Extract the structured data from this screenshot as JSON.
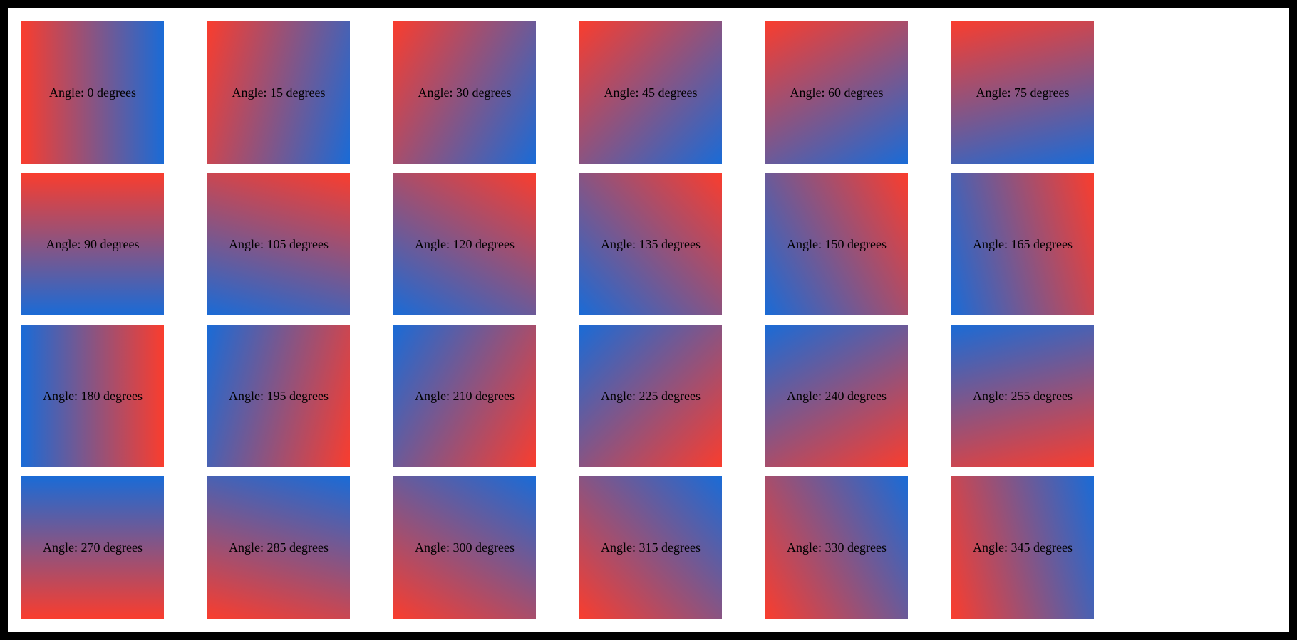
{
  "frame": {
    "border_color": "#000000",
    "page_background": "#ffffff"
  },
  "gradient": {
    "start_color": "#f93d2e",
    "end_color": "#1a6bd6",
    "css_angle_offset_deg": 90,
    "description": "linear gradient from red to blue; label angle 0 = left-to-right"
  },
  "tile_style": {
    "label_template": "Angle: {angle} degrees",
    "text_color": "#000000"
  },
  "tiles": [
    {
      "angle": 0,
      "label": "Angle: 0 degrees"
    },
    {
      "angle": 15,
      "label": "Angle: 15 degrees"
    },
    {
      "angle": 30,
      "label": "Angle: 30 degrees"
    },
    {
      "angle": 45,
      "label": "Angle: 45 degrees"
    },
    {
      "angle": 60,
      "label": "Angle: 60 degrees"
    },
    {
      "angle": 75,
      "label": "Angle: 75 degrees"
    },
    {
      "angle": 90,
      "label": "Angle: 90 degrees"
    },
    {
      "angle": 105,
      "label": "Angle: 105 degrees"
    },
    {
      "angle": 120,
      "label": "Angle: 120 degrees"
    },
    {
      "angle": 135,
      "label": "Angle: 135 degrees"
    },
    {
      "angle": 150,
      "label": "Angle: 150 degrees"
    },
    {
      "angle": 165,
      "label": "Angle: 165 degrees"
    },
    {
      "angle": 180,
      "label": "Angle: 180 degrees"
    },
    {
      "angle": 195,
      "label": "Angle: 195 degrees"
    },
    {
      "angle": 210,
      "label": "Angle: 210 degrees"
    },
    {
      "angle": 225,
      "label": "Angle: 225 degrees"
    },
    {
      "angle": 240,
      "label": "Angle: 240 degrees"
    },
    {
      "angle": 255,
      "label": "Angle: 255 degrees"
    },
    {
      "angle": 270,
      "label": "Angle: 270 degrees"
    },
    {
      "angle": 285,
      "label": "Angle: 285 degrees"
    },
    {
      "angle": 300,
      "label": "Angle: 300 degrees"
    },
    {
      "angle": 315,
      "label": "Angle: 315 degrees"
    },
    {
      "angle": 330,
      "label": "Angle: 330 degrees"
    },
    {
      "angle": 345,
      "label": "Angle: 345 degrees"
    }
  ]
}
